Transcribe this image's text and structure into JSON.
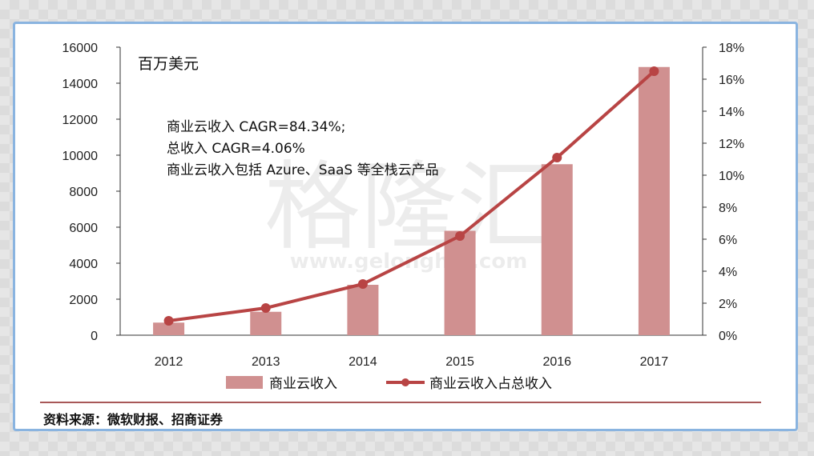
{
  "chart_data": {
    "type": "bar+line",
    "unit_label": "百万美元",
    "categories": [
      "2012",
      "2013",
      "2014",
      "2015",
      "2016",
      "2017"
    ],
    "series": [
      {
        "name": "商业云收入",
        "type": "bar",
        "axis": "left",
        "color": "#d09090",
        "values": [
          700,
          1300,
          2800,
          5800,
          9500,
          14900
        ]
      },
      {
        "name": "商业云收入占总收入",
        "type": "line",
        "axis": "right",
        "color": "#b84444",
        "values": [
          0.9,
          1.7,
          3.2,
          6.2,
          11.1,
          16.5
        ]
      }
    ],
    "y_left": {
      "min": 0,
      "max": 16000,
      "ticks": [
        "0",
        "2000",
        "4000",
        "6000",
        "8000",
        "10000",
        "12000",
        "14000",
        "16000"
      ]
    },
    "y_right": {
      "min": 0,
      "max": 18,
      "ticks": [
        "0%",
        "2%",
        "4%",
        "6%",
        "8%",
        "10%",
        "12%",
        "14%",
        "16%",
        "18%"
      ]
    },
    "annotations": [
      "商业云收入 CAGR=84.34%;",
      "总收入 CAGR=4.06%",
      "商业云收入包括 Azure、SaaS 等全栈云产品"
    ],
    "legend_position": "bottom",
    "grid": false
  },
  "watermark": {
    "text": "格隆汇",
    "url": "www.gelonghui.com"
  },
  "source": "资料来源：微软财报、招商证券"
}
